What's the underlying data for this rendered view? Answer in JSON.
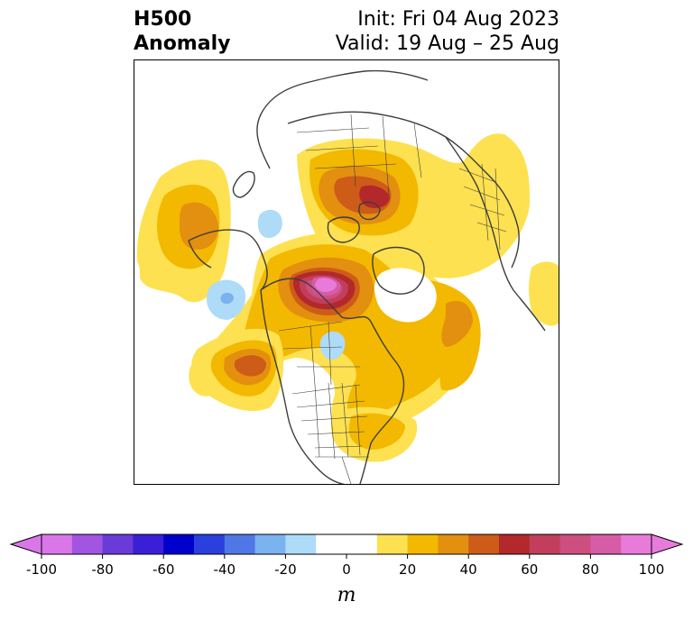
{
  "title": {
    "line1": "H500",
    "line2": "Anomaly",
    "init": "Init: Fri 04 Aug 2023",
    "valid": "Valid: 19 Aug – 25 Aug"
  },
  "colorbar": {
    "unit": "m",
    "tick_labels": [
      "-100",
      "-80",
      "-60",
      "-40",
      "-20",
      "0",
      "20",
      "40",
      "60",
      "80",
      "100"
    ],
    "colors": [
      "#d977e8",
      "#a155e0",
      "#6a3bd8",
      "#3b1fd6",
      "#0000cc",
      "#2a3fdc",
      "#4f78e6",
      "#7bb2f0",
      "#aedbf8",
      "#ffffff",
      "#ffffff",
      "#fde150",
      "#f3b800",
      "#e38f10",
      "#cc5c17",
      "#b3282a",
      "#c13f5c",
      "#cd4f80",
      "#d65ca6",
      "#e87bda"
    ],
    "extend": "both"
  },
  "map": {
    "projection": "polar-stereographic",
    "field": "500hPa height anomaly",
    "features": [
      "heat-dome-central-canada",
      "ridge-north-atlantic-europe",
      "ridge-north-pacific",
      "trough-gulf-of-alaska",
      "ridge-western-us-canada-coast",
      "ridge-eastern-us"
    ]
  }
}
